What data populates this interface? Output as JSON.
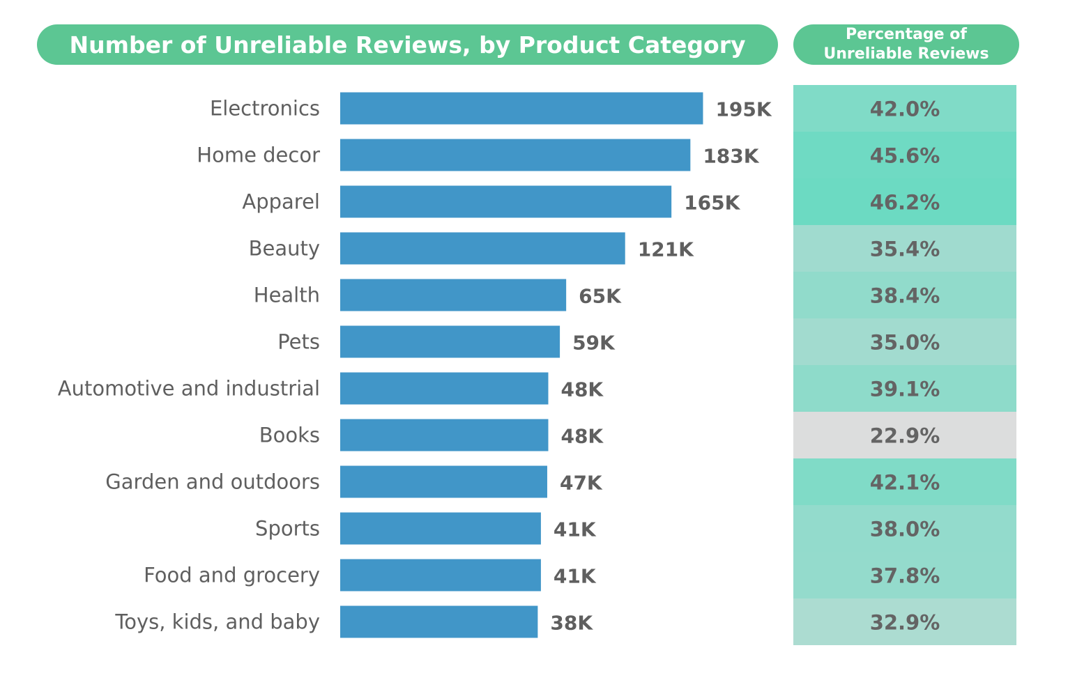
{
  "chart_data": {
    "type": "bar",
    "orientation": "horizontal",
    "title": "Number of Unreliable Reviews, by Product Category",
    "side_table_title": [
      "Percentage of",
      "Unreliable Reviews"
    ],
    "categories": [
      "Electronics",
      "Home decor",
      "Apparel",
      "Beauty",
      "Health",
      "Pets",
      "Automotive and industrial",
      "Books",
      "Garden and outdoors",
      "Sports",
      "Food and grocery",
      "Toys, kids, and baby"
    ],
    "values": [
      195,
      183,
      165,
      121,
      65,
      59,
      48,
      48,
      47,
      41,
      41,
      38
    ],
    "value_labels": [
      "195K",
      "183K",
      "165K",
      "121K",
      "65K",
      "59K",
      "48K",
      "48K",
      "47K",
      "41K",
      "41K",
      "38K"
    ],
    "units": "thousands of reviews",
    "percentages": [
      42.0,
      45.6,
      46.2,
      35.4,
      38.4,
      35.0,
      39.1,
      22.9,
      42.1,
      38.0,
      37.8,
      32.9
    ],
    "percentage_labels": [
      "42.0%",
      "45.6%",
      "46.2%",
      "35.4%",
      "38.4%",
      "35.0%",
      "39.1%",
      "22.9%",
      "42.1%",
      "38.0%",
      "37.8%",
      "32.9%"
    ],
    "grid": false,
    "legend": "none",
    "colors": {
      "bar": "#4196c8",
      "header": "#5cc693",
      "text": "#5f5f5f"
    }
  }
}
